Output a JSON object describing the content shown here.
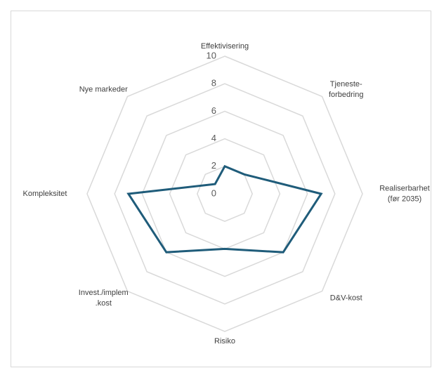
{
  "chart_data": {
    "type": "radar",
    "categories": [
      [
        "Effektivisering"
      ],
      [
        "Tjeneste-",
        "forbedring"
      ],
      [
        "Realiserbarhet",
        "(før 2035)"
      ],
      [
        "D&V-kost"
      ],
      [
        "Risiko"
      ],
      [
        "Invest./implem",
        ".kost"
      ],
      [
        "Kompleksitet"
      ],
      [
        "Nye markeder"
      ]
    ],
    "values": [
      2,
      2,
      7,
      6,
      4,
      6,
      7,
      1
    ],
    "color": "#1f5c7a",
    "ylim": [
      0,
      10
    ],
    "yticks": [
      0,
      2,
      4,
      6,
      8,
      10
    ],
    "grid": true
  }
}
